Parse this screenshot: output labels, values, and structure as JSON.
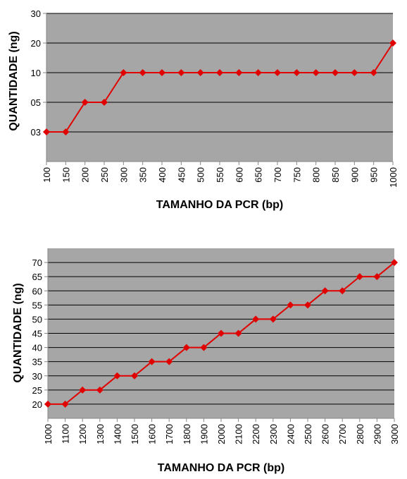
{
  "chart_data": [
    {
      "type": "line",
      "title": "",
      "xlabel": "TAMANHO DA PCR (bp)",
      "ylabel": "QUANTIDADE (ng)",
      "categories": [
        "100",
        "150",
        "200",
        "250",
        "300",
        "350",
        "400",
        "450",
        "500",
        "550",
        "600",
        "650",
        "700",
        "750",
        "800",
        "850",
        "900",
        "950",
        "1000"
      ],
      "y_tick_labels": [
        "03",
        "05",
        "10",
        "20",
        "30"
      ],
      "y_scale": "categorical",
      "series": [
        {
          "values": [
            "03",
            "03",
            "05",
            "05",
            "10",
            "10",
            "10",
            "10",
            "10",
            "10",
            "10",
            "10",
            "10",
            "10",
            "10",
            "10",
            "10",
            "10",
            "20"
          ],
          "color": "#e00000"
        }
      ],
      "grid": true,
      "plot_background": "#a6a6a6"
    },
    {
      "type": "line",
      "title": "",
      "xlabel": "TAMANHO DA PCR (bp)",
      "ylabel": "QUANTIDADE (ng)",
      "categories": [
        "1000",
        "1100",
        "1200",
        "1300",
        "1400",
        "1500",
        "1600",
        "1700",
        "1800",
        "1900",
        "2000",
        "2100",
        "2200",
        "2300",
        "2400",
        "2500",
        "2600",
        "2700",
        "2800",
        "2900",
        "3000"
      ],
      "y_tick_labels": [
        "20",
        "25",
        "30",
        "35",
        "40",
        "45",
        "50",
        "55",
        "60",
        "65",
        "70"
      ],
      "ylim": [
        15,
        75
      ],
      "series": [
        {
          "values": [
            20,
            20,
            25,
            25,
            30,
            30,
            35,
            35,
            40,
            40,
            45,
            45,
            50,
            50,
            55,
            55,
            60,
            60,
            65,
            65,
            70
          ],
          "color": "#e00000"
        }
      ],
      "grid": true,
      "plot_background": "#a6a6a6"
    }
  ]
}
